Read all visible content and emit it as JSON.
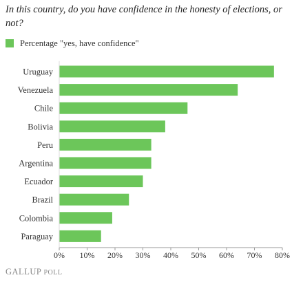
{
  "title": "In this country, do you have confidence in the honesty of elections, or not?",
  "brand": {
    "name": "Gallup",
    "suffix": "Poll"
  },
  "colors": {
    "bar": "#6cc65a",
    "axis": "#999999",
    "text": "#333333"
  },
  "chart_data": {
    "type": "bar",
    "orientation": "horizontal",
    "title": "In this country, do you have confidence in the honesty of elections, or not?",
    "legend": {
      "placement": "top-left",
      "entries": [
        "Percentage \"yes, have confidence\""
      ]
    },
    "categories": [
      "Uruguay",
      "Venezuela",
      "Chile",
      "Bolivia",
      "Peru",
      "Argentina",
      "Ecuador",
      "Brazil",
      "Colombia",
      "Paraguay"
    ],
    "series": [
      {
        "name": "Percentage \"yes, have confidence\"",
        "values": [
          77,
          64,
          46,
          38,
          33,
          33,
          30,
          25,
          19,
          15
        ]
      }
    ],
    "xlim": [
      0,
      80
    ],
    "xticks": [
      0,
      10,
      20,
      30,
      40,
      50,
      60,
      70,
      80
    ],
    "xtick_labels": [
      "0%",
      "10%",
      "20%",
      "30%",
      "40%",
      "50%",
      "60%",
      "70%",
      "80%"
    ],
    "grid": false
  }
}
